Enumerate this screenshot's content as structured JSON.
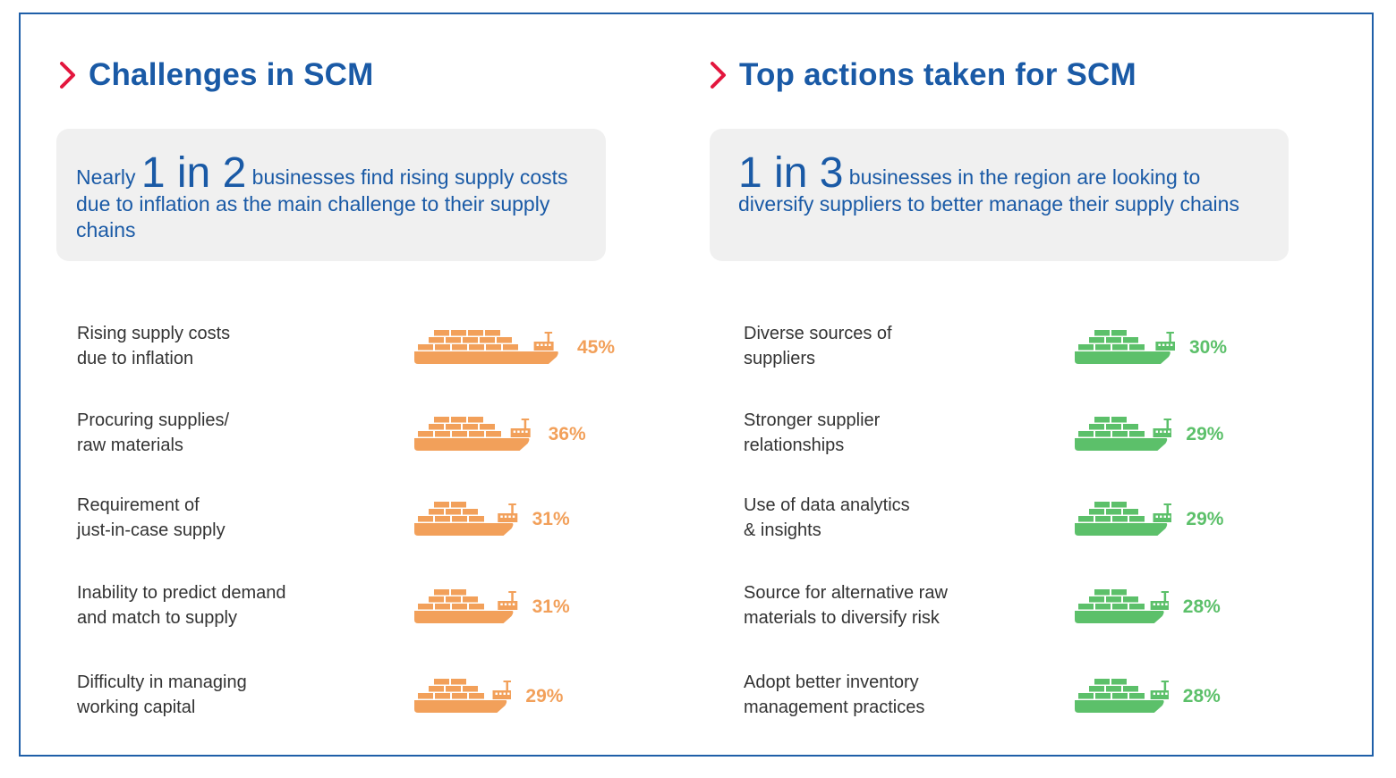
{
  "colors": {
    "border": "#1f5fa8",
    "title": "#1a5aa6",
    "accent_red": "#e3173e",
    "orange": "#f2a05a",
    "green": "#5cc06a",
    "label": "#333333",
    "callout_bg": "#f0f0f0"
  },
  "left": {
    "heading": "Challenges in SCM",
    "callout": {
      "pre": "Nearly ",
      "big": "1 in 2",
      "post": " businesses find rising supply costs due to inflation as the main challenge to their supply chains"
    }
  },
  "right": {
    "heading": "Top actions taken for SCM",
    "callout": {
      "pre": "",
      "big": "1 in 3",
      "post": " businesses in the region are looking to diversify suppliers to better manage their supply chains"
    }
  },
  "chart_data": [
    {
      "type": "bar",
      "title": "Challenges in SCM",
      "categories": [
        "Rising supply costs\ndue to inflation",
        "Procuring supplies/\nraw materials",
        "Requirement of\njust-in-case supply",
        "Inability to predict demand\nand match to supply",
        "Difficulty in managing\nworking capital"
      ],
      "values": [
        45,
        36,
        31,
        31,
        29
      ],
      "value_labels": [
        "45%",
        "36%",
        "31%",
        "31%",
        "29%"
      ],
      "unit": "%",
      "color": "#f2a05a",
      "mark": "ship-icon"
    },
    {
      "type": "bar",
      "title": "Top actions taken for SCM",
      "categories": [
        "Diverse sources of\nsuppliers",
        "Stronger supplier\nrelationships",
        "Use of data analytics\n& insights",
        "Source for alternative raw\nmaterials to diversify risk",
        "Adopt better inventory\nmanagement practices"
      ],
      "values": [
        30,
        29,
        29,
        28,
        28
      ],
      "value_labels": [
        "30%",
        "29%",
        "29%",
        "28%",
        "28%"
      ],
      "unit": "%",
      "color": "#5cc06a",
      "mark": "ship-icon"
    }
  ]
}
